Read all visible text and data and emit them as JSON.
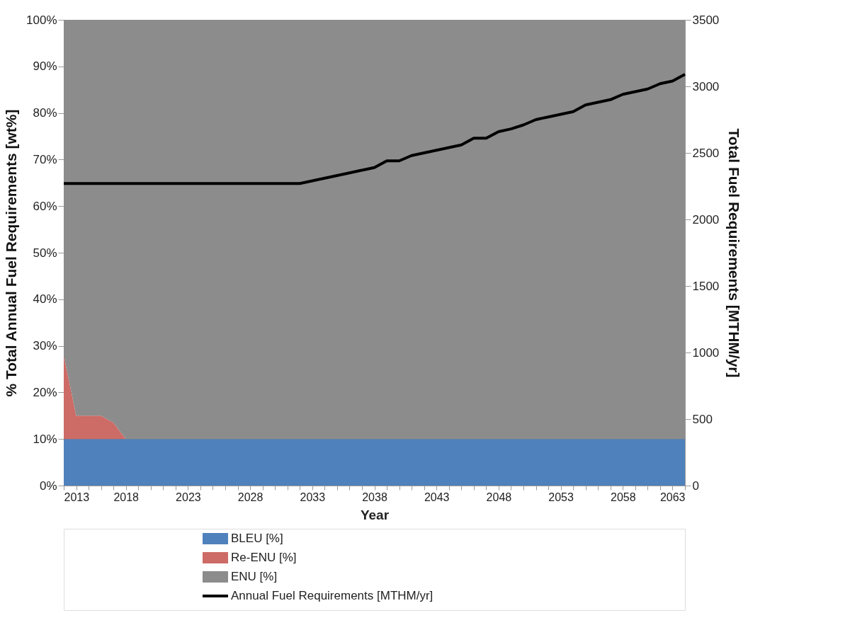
{
  "chart_data": {
    "type": "area",
    "stacked": true,
    "xlabel": "Year",
    "ylabel": "% Total Annual Fuel Requirements [wt%]",
    "y2label": "Total Fuel Requirements [MTHM/yr]",
    "x": [
      2013,
      2014,
      2015,
      2016,
      2017,
      2018,
      2019,
      2020,
      2021,
      2022,
      2023,
      2024,
      2025,
      2026,
      2027,
      2028,
      2029,
      2030,
      2031,
      2032,
      2033,
      2034,
      2035,
      2036,
      2037,
      2038,
      2039,
      2040,
      2041,
      2042,
      2043,
      2044,
      2045,
      2046,
      2047,
      2048,
      2049,
      2050,
      2051,
      2052,
      2053,
      2054,
      2055,
      2056,
      2057,
      2058,
      2059,
      2060,
      2061,
      2062,
      2063
    ],
    "series": [
      {
        "name": "BLEU [%]",
        "color": "#4f81bd",
        "values": [
          10,
          10,
          10,
          10,
          10,
          10,
          10,
          10,
          10,
          10,
          10,
          10,
          10,
          10,
          10,
          10,
          10,
          10,
          10,
          10,
          10,
          10,
          10,
          10,
          10,
          10,
          10,
          10,
          10,
          10,
          10,
          10,
          10,
          10,
          10,
          10,
          10,
          10,
          10,
          10,
          10,
          10,
          10,
          10,
          10,
          10,
          10,
          10,
          10,
          10,
          10
        ]
      },
      {
        "name": "Re-ENU [%]",
        "color": "#cd6b66",
        "values": [
          18,
          5,
          5,
          5,
          3.5,
          0,
          0,
          0,
          0,
          0,
          0,
          0,
          0,
          0,
          0,
          0,
          0,
          0,
          0,
          0,
          0,
          0,
          0,
          0,
          0,
          0,
          0,
          0,
          0,
          0,
          0,
          0,
          0,
          0,
          0,
          0,
          0,
          0,
          0,
          0,
          0,
          0,
          0,
          0,
          0,
          0,
          0,
          0,
          0,
          0,
          0
        ]
      },
      {
        "name": "ENU [%]",
        "color": "#8c8c8c",
        "values": [
          72,
          85,
          85,
          85,
          86.5,
          90,
          90,
          90,
          90,
          90,
          90,
          90,
          90,
          90,
          90,
          90,
          90,
          90,
          90,
          90,
          90,
          90,
          90,
          90,
          90,
          90,
          90,
          90,
          90,
          90,
          90,
          90,
          90,
          90,
          90,
          90,
          90,
          90,
          90,
          90,
          90,
          90,
          90,
          90,
          90,
          90,
          90,
          90,
          90,
          90,
          90
        ]
      },
      {
        "name": "Annual Fuel Requirements [MTHM/yr]",
        "type": "line",
        "axis": "y2",
        "color": "#000000",
        "values": [
          2270,
          2270,
          2270,
          2270,
          2270,
          2270,
          2270,
          2270,
          2270,
          2270,
          2270,
          2270,
          2270,
          2270,
          2270,
          2270,
          2270,
          2270,
          2270,
          2270,
          2290,
          2310,
          2330,
          2350,
          2370,
          2390,
          2440,
          2440,
          2480,
          2500,
          2520,
          2540,
          2560,
          2610,
          2610,
          2660,
          2680,
          2710,
          2750,
          2770,
          2790,
          2810,
          2860,
          2880,
          2900,
          2940,
          2960,
          2980,
          3020,
          3040,
          3090
        ]
      }
    ],
    "xlim": [
      2013,
      2063
    ],
    "xticks": [
      2013,
      {
        "value": 2014,
        "label": null
      },
      {
        "value": 2015,
        "label": null
      },
      {
        "value": 2016,
        "label": null
      },
      {
        "value": 2017,
        "label": null
      },
      2018,
      {
        "value": 2019,
        "label": null
      },
      {
        "value": 2020,
        "label": null
      },
      {
        "value": 2021,
        "label": null
      },
      {
        "value": 2022,
        "label": null
      },
      2023,
      {
        "value": 2024,
        "label": null
      },
      {
        "value": 2025,
        "label": null
      },
      {
        "value": 2026,
        "label": null
      },
      {
        "value": 2027,
        "label": null
      },
      2028,
      {
        "value": 2029,
        "label": null
      },
      {
        "value": 2030,
        "label": null
      },
      {
        "value": 2031,
        "label": null
      },
      {
        "value": 2032,
        "label": null
      },
      2033,
      {
        "value": 2034,
        "label": null
      },
      {
        "value": 2035,
        "label": null
      },
      {
        "value": 2036,
        "label": null
      },
      {
        "value": 2037,
        "label": null
      },
      2038,
      {
        "value": 2039,
        "label": null
      },
      {
        "value": 2040,
        "label": null
      },
      {
        "value": 2041,
        "label": null
      },
      {
        "value": 2042,
        "label": null
      },
      2043,
      {
        "value": 2044,
        "label": null
      },
      {
        "value": 2045,
        "label": null
      },
      {
        "value": 2046,
        "label": null
      },
      {
        "value": 2047,
        "label": null
      },
      2048,
      {
        "value": 2049,
        "label": null
      },
      {
        "value": 2050,
        "label": null
      },
      {
        "value": 2051,
        "label": null
      },
      {
        "value": 2052,
        "label": null
      },
      2053,
      {
        "value": 2054,
        "label": null
      },
      {
        "value": 2055,
        "label": null
      },
      {
        "value": 2056,
        "label": null
      },
      {
        "value": 2057,
        "label": null
      },
      2058,
      {
        "value": 2059,
        "label": null
      },
      {
        "value": 2060,
        "label": null
      },
      {
        "value": 2061,
        "label": null
      },
      {
        "value": 2062,
        "label": null
      },
      2063
    ],
    "ylim": [
      0,
      100
    ],
    "yticks": [
      {
        "value": 0,
        "label": "0%"
      },
      {
        "value": 10,
        "label": "10%"
      },
      {
        "value": 20,
        "label": "20%"
      },
      {
        "value": 30,
        "label": "30%"
      },
      {
        "value": 40,
        "label": "40%"
      },
      {
        "value": 50,
        "label": "50%"
      },
      {
        "value": 60,
        "label": "60%"
      },
      {
        "value": 70,
        "label": "70%"
      },
      {
        "value": 80,
        "label": "80%"
      },
      {
        "value": 90,
        "label": "90%"
      },
      {
        "value": 100,
        "label": "100%"
      }
    ],
    "y2lim": [
      0,
      3500
    ],
    "y2ticks": [
      0,
      500,
      1000,
      1500,
      2000,
      2500,
      3000,
      3500
    ],
    "grid": "y",
    "legend": "bottom",
    "line_style": "solid",
    "marker": "none"
  }
}
